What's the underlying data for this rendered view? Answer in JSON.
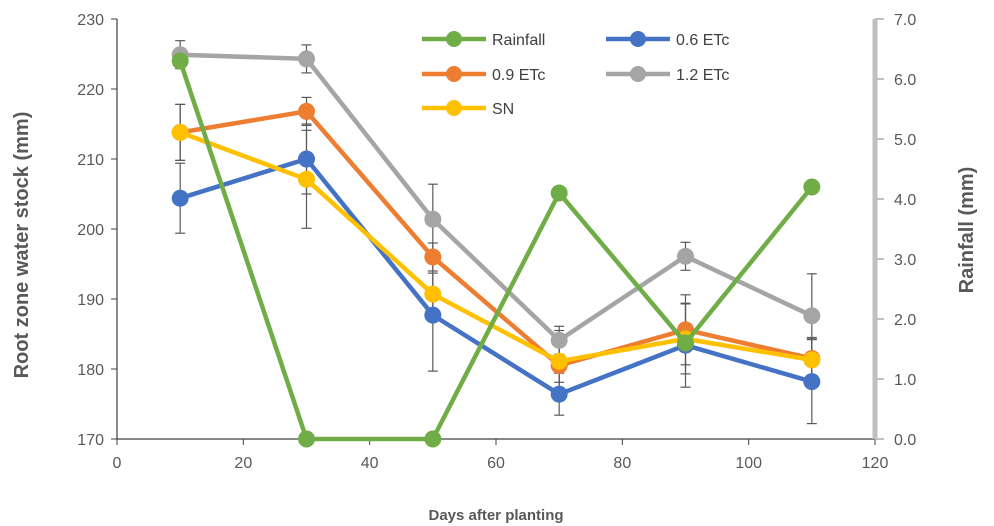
{
  "chart_data": {
    "type": "line",
    "x": [
      10,
      30,
      50,
      70,
      90,
      110
    ],
    "xlabel": "Days after planting",
    "ylabel": "Root zone water stock (mm)",
    "y2label": "Rainfall (mm)",
    "xlim": [
      0,
      120
    ],
    "ylim": [
      170,
      230
    ],
    "y2lim": [
      0.0,
      7.0
    ],
    "xticks": [
      "0",
      "20",
      "40",
      "60",
      "80",
      "100",
      "120"
    ],
    "yticks": [
      "170",
      "180",
      "190",
      "200",
      "210",
      "220",
      "230"
    ],
    "y2ticks": [
      "0.0",
      "1.0",
      "2.0",
      "3.0",
      "4.0",
      "5.0",
      "6.0",
      "7.0"
    ],
    "grid": false,
    "legend_position": "top-right",
    "series": [
      {
        "name": "Rainfall",
        "axis": "right",
        "color": "#70AD47",
        "values": [
          6.3,
          0.0,
          0.0,
          4.1,
          1.6,
          4.2
        ],
        "errors": null
      },
      {
        "name": "0.6 ETc",
        "axis": "left",
        "color": "#4472C4",
        "values": [
          204.4,
          210.0,
          187.7,
          176.4,
          183.4,
          178.2
        ],
        "errors": [
          5.0,
          5.0,
          8.0,
          3.0,
          6.0,
          6.0
        ]
      },
      {
        "name": "0.9 ETc",
        "axis": "left",
        "color": "#ED7D31",
        "values": [
          213.8,
          216.8,
          196.0,
          180.5,
          185.6,
          181.5
        ],
        "errors": [
          4.0,
          2.0,
          2.0,
          5.0,
          5.0,
          3.0
        ]
      },
      {
        "name": "1.2 ETc",
        "axis": "left",
        "color": "#A5A5A5",
        "values": [
          224.9,
          224.3,
          201.4,
          184.1,
          196.1,
          187.6
        ],
        "errors": [
          2.0,
          2.0,
          5.0,
          2.0,
          2.0,
          6.0
        ]
      },
      {
        "name": "SN",
        "axis": "left",
        "color": "#FFC000",
        "values": [
          213.8,
          207.1,
          190.7,
          181.1,
          184.3,
          181.3
        ],
        "errors": [
          4.0,
          7.0,
          3.0,
          3.0,
          5.0,
          3.0
        ]
      }
    ]
  }
}
